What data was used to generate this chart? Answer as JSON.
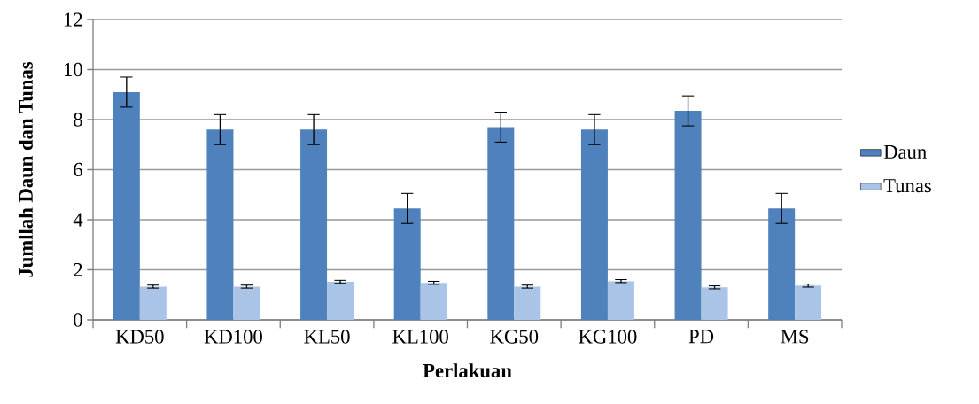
{
  "chart_data": {
    "type": "bar",
    "xlabel": "Perlakuan",
    "ylabel": "Jumllah  Daun dan Tunas",
    "categories": [
      "KD50",
      "KD100",
      "KL50",
      "KL100",
      "KG50",
      "KG100",
      "PD",
      "MS"
    ],
    "series": [
      {
        "name": "Daun",
        "color": "#4f81bd",
        "values": [
          9.1,
          7.6,
          7.6,
          4.45,
          7.7,
          7.6,
          8.35,
          4.45
        ],
        "errors": [
          0.6,
          0.6,
          0.6,
          0.6,
          0.6,
          0.6,
          0.6,
          0.6
        ]
      },
      {
        "name": "Tunas",
        "color": "#a9c4e6",
        "values": [
          1.33,
          1.33,
          1.52,
          1.48,
          1.33,
          1.55,
          1.3,
          1.37
        ],
        "errors": [
          0.06,
          0.06,
          0.06,
          0.06,
          0.06,
          0.06,
          0.06,
          0.06
        ]
      }
    ],
    "ylim": [
      0,
      12
    ],
    "yticks": [
      0,
      2,
      4,
      6,
      8,
      10,
      12
    ],
    "grid": "y",
    "legend": "right"
  }
}
